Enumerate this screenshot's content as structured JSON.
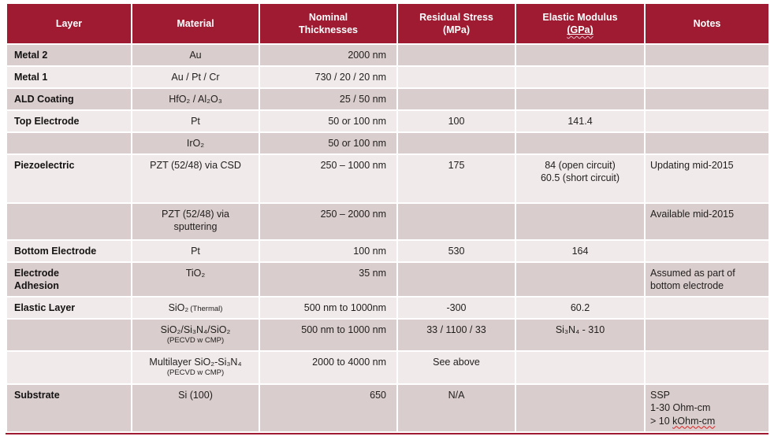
{
  "table": {
    "accent_color": "#9e1b32",
    "band_dark_color": "#d9cdcd",
    "band_light_color": "#f0eaea",
    "header": [
      {
        "line1": "Layer"
      },
      {
        "line1": "Material"
      },
      {
        "line1": "Nominal",
        "line2": "Thicknesses"
      },
      {
        "line1": "Residual Stress",
        "line2": "(MPa)"
      },
      {
        "line1": "Elastic Modulus",
        "line2": "(GPa)",
        "line2_misspelled": true
      },
      {
        "line1": "Notes"
      }
    ],
    "rows": [
      {
        "layer": "Metal 2",
        "material": {
          "main": "Au"
        },
        "thickness": "2000 nm"
      },
      {
        "layer": "Metal 1",
        "material": {
          "main": "Au / Pt / Cr"
        },
        "thickness": "730 / 20 / 20 nm"
      },
      {
        "layer": "ALD Coating",
        "material": {
          "main": "HfO₂ / Al₂O₃"
        },
        "thickness": "25 / 50 nm"
      },
      {
        "layer": "Top Electrode",
        "material": {
          "main": "Pt"
        },
        "thickness": "50 or 100 nm",
        "stress": "100",
        "modulus": "141.4"
      },
      {
        "material": {
          "main": "IrO₂"
        },
        "thickness": "50 or 100 nm"
      },
      {
        "layer": "Piezoelectric",
        "material": {
          "main": "PZT (52/48) via CSD"
        },
        "thickness": "250 – 1000 nm",
        "stress": "175",
        "modulus": "84 (open circuit)\n60.5 (short circuit)",
        "notes": [
          "Updating mid-2015"
        ]
      },
      {
        "material": {
          "main": "PZT (52/48) via\nsputtering"
        },
        "thickness": "250 – 2000 nm",
        "notes": [
          "Available mid-2015"
        ]
      },
      {
        "layer": "Bottom Electrode",
        "material": {
          "main": "Pt"
        },
        "thickness": "100 nm",
        "stress": "530",
        "modulus": "164"
      },
      {
        "layer": "Electrode\nAdhesion",
        "material": {
          "main": "TiO₂"
        },
        "thickness": "35 nm",
        "notes": [
          "Assumed as part of",
          "bottom electrode"
        ]
      },
      {
        "layer": "Elastic Layer",
        "material": {
          "main": "SiO₂",
          "inline_small": "(Thermal)"
        },
        "thickness": "500 nm to 1000nm",
        "stress": "-300",
        "modulus": "60.2"
      },
      {
        "material": {
          "main": "SiO₂/Si₃N₄/SiO₂",
          "sub": "(PECVD w CMP)"
        },
        "thickness": "500 nm to 1000 nm",
        "stress": "33 / 1100 / 33",
        "modulus": "Si₃N₄ - 310"
      },
      {
        "material": {
          "main": "Multilayer SiO₂-Si₃N₄",
          "sub": "(PECVD w CMP)"
        },
        "thickness": "2000 to 4000 nm",
        "stress": "See above"
      },
      {
        "layer": "Substrate",
        "material": {
          "main": "Si (100)"
        },
        "thickness": "650",
        "stress": "N/A",
        "notes": [
          "SSP",
          "1-30 Ohm-cm",
          {
            "pre": "> 10 ",
            "squiggle": "kOhm-cm"
          }
        ]
      }
    ]
  }
}
